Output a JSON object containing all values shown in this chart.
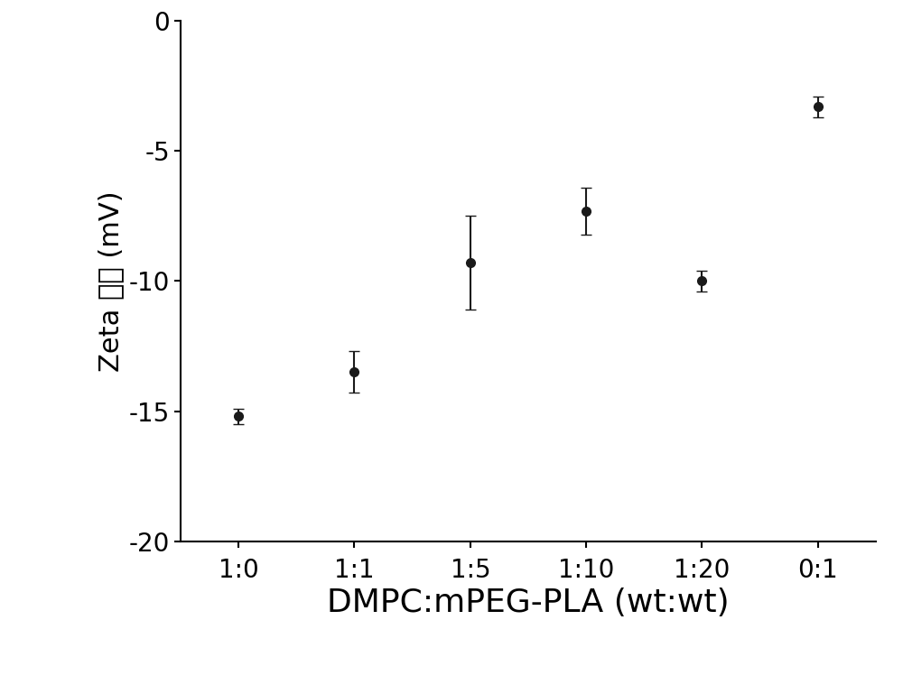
{
  "x_labels": [
    "1:0",
    "1:1",
    "1:5",
    "1:10",
    "1:20",
    "0:1"
  ],
  "y_values": [
    -15.2,
    -13.5,
    -9.3,
    -7.3,
    -10.0,
    -3.3
  ],
  "y_errors": [
    0.3,
    0.8,
    1.8,
    0.9,
    0.4,
    0.4
  ],
  "ylim": [
    -20,
    0
  ],
  "yticks": [
    0,
    -5,
    -10,
    -15,
    -20
  ],
  "ylabel_parts": [
    "Zeta 电位 (mV)"
  ],
  "xlabel": "DMPC:mPEG-PLA (wt:wt)",
  "line_color": "#1a1a1a",
  "marker": "o",
  "markersize": 7,
  "linewidth": 1.8,
  "capsize": 4,
  "elinewidth": 1.5,
  "background_color": "#ffffff",
  "ylabel_fontsize": 22,
  "xlabel_fontsize": 26,
  "tick_fontsize": 20,
  "spine_linewidth": 1.5
}
